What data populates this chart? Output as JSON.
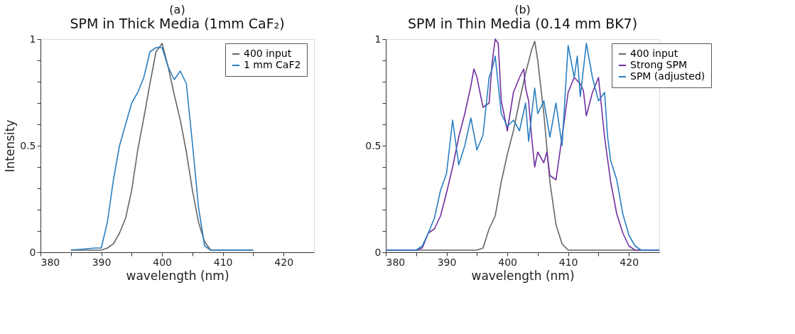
{
  "chart_data": [
    {
      "type": "line",
      "title": "(a)",
      "subtitle": "SPM in Thick Media (1mm CaF₂)",
      "xlabel": "wavelength (nm)",
      "ylabel": "Intensity",
      "xlim": [
        380,
        425
      ],
      "xticks": [
        380,
        {
          "value": 385,
          "label": null
        },
        390,
        {
          "value": 395,
          "label": null
        },
        400,
        {
          "value": 405,
          "label": null
        },
        410,
        {
          "value": 415,
          "label": null
        },
        420
      ],
      "ylim": [
        0,
        1
      ],
      "yticks": [
        0,
        {
          "value": 0.1,
          "label": null
        },
        {
          "value": 0.2,
          "label": null
        },
        {
          "value": 0.3,
          "label": null
        },
        {
          "value": 0.4,
          "label": null
        },
        0.5,
        {
          "value": 0.6,
          "label": null
        },
        {
          "value": 0.7,
          "label": null
        },
        {
          "value": 0.8,
          "label": null
        },
        {
          "value": 0.9,
          "label": null
        },
        1
      ],
      "legend": "top right",
      "grid": false,
      "marker": "none",
      "line_style": "solid",
      "series": [
        {
          "name": "400 input",
          "color": "#666666",
          "x": [
            385,
            390,
            391,
            392,
            393,
            394,
            395,
            396,
            397,
            398,
            399,
            400,
            401,
            402,
            403,
            404,
            405,
            406,
            407,
            408,
            410,
            415
          ],
          "values": [
            0.01,
            0.01,
            0.02,
            0.04,
            0.09,
            0.16,
            0.29,
            0.48,
            0.63,
            0.79,
            0.94,
            0.98,
            0.87,
            0.74,
            0.62,
            0.47,
            0.29,
            0.14,
            0.05,
            0.01,
            0.01,
            0.01
          ]
        },
        {
          "name": "1 mm CaF2",
          "color": "#2a7fc1",
          "x": [
            385,
            389,
            390,
            391,
            392,
            393,
            394,
            395,
            396,
            397,
            398,
            399,
            400,
            401,
            402,
            403,
            404,
            405,
            406,
            407,
            408,
            415
          ],
          "values": [
            0.01,
            0.02,
            0.02,
            0.14,
            0.34,
            0.5,
            0.6,
            0.7,
            0.75,
            0.82,
            0.94,
            0.96,
            0.96,
            0.87,
            0.81,
            0.85,
            0.79,
            0.51,
            0.21,
            0.03,
            0.01,
            0.01
          ]
        }
      ]
    },
    {
      "type": "line",
      "title": "(b)",
      "subtitle": "SPM in Thin Media (0.14 mm BK7)",
      "xlabel": "wavelength (nm)",
      "xlim": [
        380,
        425
      ],
      "xticks": [
        380,
        {
          "value": 385,
          "label": null
        },
        390,
        {
          "value": 395,
          "label": null
        },
        400,
        {
          "value": 405,
          "label": null
        },
        410,
        {
          "value": 415,
          "label": null
        },
        420
      ],
      "ylim": [
        0,
        1
      ],
      "yticks": [
        0,
        {
          "value": 0.1,
          "label": null
        },
        {
          "value": 0.2,
          "label": null
        },
        {
          "value": 0.3,
          "label": null
        },
        {
          "value": 0.4,
          "label": null
        },
        0.5,
        {
          "value": 0.6,
          "label": null
        },
        {
          "value": 0.7,
          "label": null
        },
        {
          "value": 0.8,
          "label": null
        },
        {
          "value": 0.9,
          "label": null
        },
        1
      ],
      "legend": "top right",
      "grid": false,
      "marker": "none",
      "line_style": "solid",
      "series": [
        {
          "name": "400 input",
          "color": "#666666",
          "x": [
            380,
            395,
            396,
            397,
            398,
            399,
            400,
            401,
            402,
            403,
            404,
            404.5,
            405,
            406,
            407,
            408,
            409,
            410,
            425
          ],
          "values": [
            0.01,
            0.01,
            0.02,
            0.11,
            0.17,
            0.33,
            0.46,
            0.57,
            0.71,
            0.84,
            0.95,
            0.99,
            0.9,
            0.65,
            0.33,
            0.13,
            0.04,
            0.01,
            0.01
          ]
        },
        {
          "name": "Strong SPM",
          "color": "#7030a0",
          "x": [
            380,
            385,
            386,
            387,
            388,
            389,
            390,
            391,
            392,
            393,
            394,
            394.5,
            395,
            396,
            397,
            397.5,
            398,
            398.5,
            399,
            400,
            401,
            402,
            402.7,
            403,
            403.5,
            404,
            404.5,
            405,
            406,
            406.5,
            407,
            408,
            409,
            410,
            411,
            412,
            412.5,
            413,
            414,
            415,
            416,
            417,
            418,
            419,
            420,
            421,
            425
          ],
          "values": [
            0.01,
            0.01,
            0.02,
            0.09,
            0.11,
            0.17,
            0.28,
            0.4,
            0.54,
            0.65,
            0.78,
            0.86,
            0.82,
            0.68,
            0.7,
            0.89,
            1.0,
            0.98,
            0.71,
            0.57,
            0.75,
            0.82,
            0.86,
            0.77,
            0.71,
            0.54,
            0.4,
            0.47,
            0.42,
            0.47,
            0.36,
            0.34,
            0.54,
            0.75,
            0.82,
            0.79,
            0.76,
            0.64,
            0.75,
            0.82,
            0.54,
            0.33,
            0.18,
            0.09,
            0.03,
            0.01,
            0.01
          ]
        },
        {
          "name": "SPM (adjusted)",
          "color": "#2a7fc1",
          "x": [
            380,
            385,
            386,
            387,
            388,
            389,
            390,
            391,
            392,
            393,
            394,
            395,
            396,
            397,
            397.5,
            398,
            399,
            400,
            401,
            402,
            403,
            403.5,
            404.5,
            405,
            406,
            407,
            408,
            409,
            410,
            411,
            411.5,
            412,
            413,
            414,
            415,
            416,
            416.5,
            417,
            418,
            419,
            420,
            421,
            422,
            425
          ],
          "values": [
            0.01,
            0.01,
            0.03,
            0.09,
            0.16,
            0.29,
            0.37,
            0.62,
            0.41,
            0.5,
            0.63,
            0.48,
            0.55,
            0.82,
            0.86,
            0.92,
            0.65,
            0.59,
            0.62,
            0.57,
            0.7,
            0.52,
            0.77,
            0.65,
            0.71,
            0.54,
            0.7,
            0.5,
            0.97,
            0.82,
            0.92,
            0.73,
            0.98,
            0.82,
            0.71,
            0.75,
            0.54,
            0.43,
            0.34,
            0.18,
            0.08,
            0.03,
            0.01,
            0.01
          ]
        }
      ]
    }
  ]
}
